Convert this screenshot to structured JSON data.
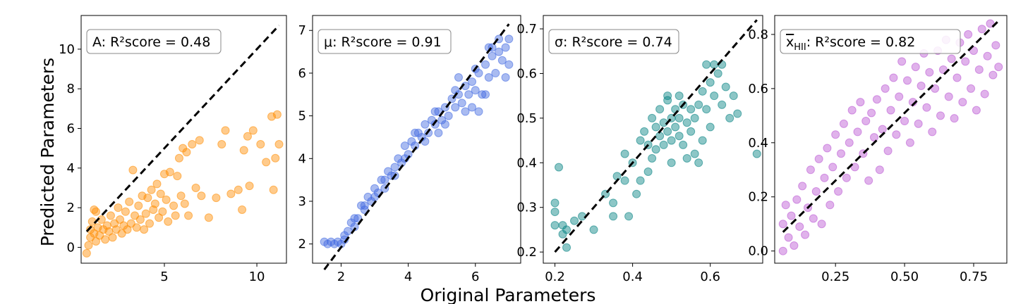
{
  "figure": {
    "xlabel": "Original Parameters",
    "ylabel": "Predicted Parameters"
  },
  "chart_data": [
    {
      "type": "scatter",
      "annotation": "A: R²score = 0.48",
      "color": "#ff8c00",
      "xlim": [
        0.5,
        11.6
      ],
      "ylim": [
        -0.8,
        11.7
      ],
      "xticks": [
        5,
        10
      ],
      "yticks": [
        0,
        2,
        4,
        6,
        8,
        10
      ],
      "identity_line": [
        [
          0.8,
          0.8
        ],
        [
          11.2,
          11.2
        ]
      ],
      "points": [
        [
          0.8,
          -0.3
        ],
        [
          0.9,
          0.1
        ],
        [
          1.0,
          0.5
        ],
        [
          1.0,
          0.9
        ],
        [
          1.1,
          1.3
        ],
        [
          1.2,
          0.7
        ],
        [
          1.3,
          1.8
        ],
        [
          1.3,
          0.3
        ],
        [
          1.4,
          1.0
        ],
        [
          1.5,
          0.6
        ],
        [
          1.6,
          1.4
        ],
        [
          1.7,
          0.9
        ],
        [
          1.8,
          0.4
        ],
        [
          1.9,
          1.1
        ],
        [
          2.0,
          0.8
        ],
        [
          2.1,
          1.6
        ],
        [
          2.2,
          0.5
        ],
        [
          2.3,
          1.2
        ],
        [
          2.4,
          0.9
        ],
        [
          2.5,
          2.0
        ],
        [
          2.6,
          1.4
        ],
        [
          2.7,
          0.7
        ],
        [
          2.8,
          1.1
        ],
        [
          2.9,
          1.8
        ],
        [
          3.0,
          0.9
        ],
        [
          3.1,
          2.3
        ],
        [
          3.2,
          1.2
        ],
        [
          3.3,
          3.9
        ],
        [
          3.4,
          1.6
        ],
        [
          3.5,
          1.0
        ],
        [
          3.6,
          2.1
        ],
        [
          3.7,
          1.4
        ],
        [
          3.8,
          2.6
        ],
        [
          3.9,
          0.9
        ],
        [
          4.0,
          1.7
        ],
        [
          4.1,
          2.5
        ],
        [
          4.2,
          1.2
        ],
        [
          4.3,
          2.9
        ],
        [
          4.4,
          1.9
        ],
        [
          4.5,
          2.2
        ],
        [
          4.6,
          3.2
        ],
        [
          4.7,
          1.5
        ],
        [
          4.8,
          2.7
        ],
        [
          4.9,
          1.8
        ],
        [
          5.0,
          3.7
        ],
        [
          5.1,
          2.4
        ],
        [
          5.2,
          1.3
        ],
        [
          5.3,
          3.8
        ],
        [
          5.5,
          2.1
        ],
        [
          5.6,
          1.6
        ],
        [
          5.7,
          3.6
        ],
        [
          5.8,
          4.5
        ],
        [
          5.9,
          2.6
        ],
        [
          6.0,
          5.0
        ],
        [
          6.1,
          2.2
        ],
        [
          6.2,
          4.8
        ],
        [
          6.3,
          1.6
        ],
        [
          6.5,
          5.2
        ],
        [
          6.7,
          3.0
        ],
        [
          6.9,
          5.4
        ],
        [
          7.0,
          2.6
        ],
        [
          7.4,
          1.5
        ],
        [
          7.8,
          2.5
        ],
        [
          8.1,
          5.2
        ],
        [
          8.3,
          5.9
        ],
        [
          8.6,
          2.7
        ],
        [
          9.0,
          2.9
        ],
        [
          9.2,
          1.9
        ],
        [
          9.3,
          4.9
        ],
        [
          9.5,
          5.6
        ],
        [
          9.6,
          3.1
        ],
        [
          9.8,
          5.9
        ],
        [
          10.2,
          5.2
        ],
        [
          10.5,
          4.3
        ],
        [
          10.8,
          6.6
        ],
        [
          10.9,
          2.9
        ],
        [
          11.0,
          4.5
        ],
        [
          11.1,
          6.7
        ],
        [
          11.2,
          5.2
        ],
        [
          1.2,
          1.9
        ]
      ]
    },
    {
      "type": "scatter",
      "annotation": "μ: R²score = 0.91",
      "color": "#4169e1",
      "xlim": [
        1.15,
        7.35
      ],
      "ylim": [
        1.55,
        7.35
      ],
      "xticks": [
        2,
        4,
        6
      ],
      "yticks": [
        2,
        3,
        4,
        5,
        6,
        7
      ],
      "identity_line": [
        [
          1.5,
          1.4
        ],
        [
          7.0,
          7.15
        ]
      ],
      "points": [
        [
          1.5,
          2.05
        ],
        [
          1.6,
          2.0
        ],
        [
          1.7,
          2.05
        ],
        [
          1.8,
          2.0
        ],
        [
          1.9,
          2.05
        ],
        [
          2.0,
          2.0
        ],
        [
          2.1,
          2.1
        ],
        [
          2.2,
          2.3
        ],
        [
          2.3,
          2.5
        ],
        [
          2.4,
          2.6
        ],
        [
          2.5,
          2.6
        ],
        [
          2.6,
          2.9
        ],
        [
          2.7,
          2.8
        ],
        [
          2.8,
          3.1
        ],
        [
          2.9,
          3.0
        ],
        [
          3.0,
          3.3
        ],
        [
          3.1,
          3.2
        ],
        [
          3.2,
          3.5
        ],
        [
          3.3,
          3.3
        ],
        [
          3.4,
          3.7
        ],
        [
          3.5,
          3.6
        ],
        [
          3.6,
          3.8
        ],
        [
          3.7,
          4.0
        ],
        [
          3.8,
          3.9
        ],
        [
          3.9,
          4.3
        ],
        [
          4.0,
          4.1
        ],
        [
          4.1,
          4.4
        ],
        [
          4.2,
          4.3
        ],
        [
          4.3,
          4.6
        ],
        [
          4.4,
          4.5
        ],
        [
          4.5,
          4.8
        ],
        [
          4.6,
          4.6
        ],
        [
          4.7,
          4.9
        ],
        [
          4.8,
          4.8
        ],
        [
          4.9,
          5.1
        ],
        [
          5.0,
          4.9
        ],
        [
          5.1,
          5.2
        ],
        [
          5.2,
          5.0
        ],
        [
          5.3,
          5.4
        ],
        [
          5.4,
          5.2
        ],
        [
          5.5,
          5.5
        ],
        [
          5.6,
          5.3
        ],
        [
          5.7,
          5.7
        ],
        [
          5.8,
          5.5
        ],
        [
          5.9,
          5.8
        ],
        [
          6.0,
          5.6
        ],
        [
          6.1,
          6.0
        ],
        [
          6.2,
          5.5
        ],
        [
          6.3,
          6.2
        ],
        [
          6.4,
          5.9
        ],
        [
          6.5,
          6.4
        ],
        [
          6.6,
          6.0
        ],
        [
          6.7,
          6.5
        ],
        [
          6.8,
          6.3
        ],
        [
          6.9,
          6.6
        ],
        [
          7.0,
          6.2
        ],
        [
          7.0,
          6.8
        ],
        [
          6.9,
          5.9
        ],
        [
          6.5,
          6.6
        ],
        [
          6.3,
          5.5
        ],
        [
          6.0,
          6.1
        ],
        [
          5.7,
          5.1
        ],
        [
          5.4,
          5.6
        ],
        [
          5.1,
          4.8
        ],
        [
          4.8,
          5.1
        ],
        [
          4.5,
          4.4
        ],
        [
          4.2,
          4.6
        ],
        [
          3.9,
          4.0
        ],
        [
          3.6,
          3.6
        ],
        [
          3.3,
          3.5
        ],
        [
          3.0,
          3.1
        ],
        [
          2.7,
          2.9
        ],
        [
          2.4,
          2.4
        ],
        [
          2.1,
          2.2
        ],
        [
          5.9,
          5.2
        ],
        [
          6.1,
          5.1
        ],
        [
          6.4,
          6.6
        ],
        [
          6.7,
          6.8
        ],
        [
          5.5,
          5.9
        ],
        [
          4.9,
          4.6
        ]
      ]
    },
    {
      "type": "scatter",
      "annotation": "σ: R²score = 0.74",
      "color": "#008080",
      "xlim": [
        0.17,
        0.735
      ],
      "ylim": [
        0.175,
        0.73
      ],
      "xticks": [
        0.2,
        0.4,
        0.6
      ],
      "yticks": [
        0.2,
        0.3,
        0.4,
        0.5,
        0.6,
        0.7
      ],
      "identity_line": [
        [
          0.2,
          0.2
        ],
        [
          0.72,
          0.72
        ]
      ],
      "points": [
        [
          0.2,
          0.31
        ],
        [
          0.2,
          0.29
        ],
        [
          0.2,
          0.26
        ],
        [
          0.21,
          0.39
        ],
        [
          0.22,
          0.26
        ],
        [
          0.22,
          0.24
        ],
        [
          0.23,
          0.21
        ],
        [
          0.23,
          0.25
        ],
        [
          0.25,
          0.27
        ],
        [
          0.27,
          0.28
        ],
        [
          0.3,
          0.25
        ],
        [
          0.33,
          0.33
        ],
        [
          0.35,
          0.28
        ],
        [
          0.35,
          0.31
        ],
        [
          0.36,
          0.37
        ],
        [
          0.38,
          0.36
        ],
        [
          0.38,
          0.42
        ],
        [
          0.39,
          0.28
        ],
        [
          0.4,
          0.4
        ],
        [
          0.42,
          0.45
        ],
        [
          0.42,
          0.36
        ],
        [
          0.43,
          0.47
        ],
        [
          0.44,
          0.44
        ],
        [
          0.45,
          0.5
        ],
        [
          0.45,
          0.41
        ],
        [
          0.46,
          0.48
        ],
        [
          0.47,
          0.46
        ],
        [
          0.47,
          0.52
        ],
        [
          0.48,
          0.44
        ],
        [
          0.48,
          0.49
        ],
        [
          0.49,
          0.47
        ],
        [
          0.49,
          0.55
        ],
        [
          0.5,
          0.5
        ],
        [
          0.5,
          0.45
        ],
        [
          0.51,
          0.48
        ],
        [
          0.51,
          0.52
        ],
        [
          0.52,
          0.46
        ],
        [
          0.52,
          0.5
        ],
        [
          0.53,
          0.53
        ],
        [
          0.53,
          0.44
        ],
        [
          0.54,
          0.49
        ],
        [
          0.55,
          0.52
        ],
        [
          0.55,
          0.47
        ],
        [
          0.56,
          0.42
        ],
        [
          0.56,
          0.5
        ],
        [
          0.57,
          0.53
        ],
        [
          0.58,
          0.45
        ],
        [
          0.58,
          0.56
        ],
        [
          0.59,
          0.52
        ],
        [
          0.6,
          0.58
        ],
        [
          0.6,
          0.48
        ],
        [
          0.61,
          0.62
        ],
        [
          0.61,
          0.55
        ],
        [
          0.62,
          0.6
        ],
        [
          0.63,
          0.53
        ],
        [
          0.63,
          0.62
        ],
        [
          0.64,
          0.57
        ],
        [
          0.65,
          0.5
        ],
        [
          0.66,
          0.55
        ],
        [
          0.67,
          0.51
        ],
        [
          0.72,
          0.42
        ],
        [
          0.57,
          0.4
        ],
        [
          0.54,
          0.41
        ],
        [
          0.5,
          0.4
        ],
        [
          0.46,
          0.43
        ],
        [
          0.44,
          0.38
        ],
        [
          0.41,
          0.33
        ],
        [
          0.52,
          0.55
        ],
        [
          0.49,
          0.54
        ],
        [
          0.59,
          0.62
        ]
      ]
    },
    {
      "type": "scatter",
      "annotation": "x̄_HII: R²score = 0.82",
      "annotation_prefix": "x",
      "annotation_subscript": "HII",
      "annotation_suffix": ": R²score = 0.82",
      "color": "#ba55d3",
      "xlim": [
        0.03,
        0.87
      ],
      "ylim": [
        -0.045,
        0.87
      ],
      "xticks": [
        0.25,
        0.5,
        0.75
      ],
      "yticks": [
        0.0,
        0.2,
        0.4,
        0.6,
        0.8
      ],
      "identity_line": [
        [
          0.06,
          0.07
        ],
        [
          0.84,
          0.85
        ]
      ],
      "points": [
        [
          0.06,
          0.0
        ],
        [
          0.06,
          0.1
        ],
        [
          0.07,
          0.17
        ],
        [
          0.08,
          0.05
        ],
        [
          0.09,
          0.13
        ],
        [
          0.1,
          0.02
        ],
        [
          0.11,
          0.19
        ],
        [
          0.12,
          0.09
        ],
        [
          0.13,
          0.24
        ],
        [
          0.14,
          0.06
        ],
        [
          0.15,
          0.16
        ],
        [
          0.16,
          0.3
        ],
        [
          0.17,
          0.12
        ],
        [
          0.18,
          0.22
        ],
        [
          0.19,
          0.34
        ],
        [
          0.2,
          0.1
        ],
        [
          0.21,
          0.27
        ],
        [
          0.22,
          0.38
        ],
        [
          0.23,
          0.17
        ],
        [
          0.24,
          0.31
        ],
        [
          0.25,
          0.43
        ],
        [
          0.26,
          0.22
        ],
        [
          0.27,
          0.36
        ],
        [
          0.28,
          0.47
        ],
        [
          0.29,
          0.27
        ],
        [
          0.3,
          0.4
        ],
        [
          0.31,
          0.52
        ],
        [
          0.32,
          0.31
        ],
        [
          0.33,
          0.44
        ],
        [
          0.34,
          0.55
        ],
        [
          0.35,
          0.36
        ],
        [
          0.36,
          0.48
        ],
        [
          0.37,
          0.26
        ],
        [
          0.38,
          0.51
        ],
        [
          0.39,
          0.42
        ],
        [
          0.4,
          0.56
        ],
        [
          0.41,
          0.3
        ],
        [
          0.42,
          0.45
        ],
        [
          0.43,
          0.6
        ],
        [
          0.44,
          0.37
        ],
        [
          0.45,
          0.52
        ],
        [
          0.46,
          0.64
        ],
        [
          0.47,
          0.43
        ],
        [
          0.48,
          0.57
        ],
        [
          0.49,
          0.7
        ],
        [
          0.5,
          0.48
        ],
        [
          0.51,
          0.63
        ],
        [
          0.52,
          0.4
        ],
        [
          0.53,
          0.55
        ],
        [
          0.54,
          0.68
        ],
        [
          0.55,
          0.47
        ],
        [
          0.56,
          0.61
        ],
        [
          0.57,
          0.73
        ],
        [
          0.58,
          0.53
        ],
        [
          0.59,
          0.66
        ],
        [
          0.6,
          0.44
        ],
        [
          0.61,
          0.6
        ],
        [
          0.62,
          0.74
        ],
        [
          0.63,
          0.5
        ],
        [
          0.64,
          0.67
        ],
        [
          0.65,
          0.78
        ],
        [
          0.66,
          0.57
        ],
        [
          0.67,
          0.71
        ],
        [
          0.68,
          0.49
        ],
        [
          0.69,
          0.64
        ],
        [
          0.7,
          0.77
        ],
        [
          0.71,
          0.55
        ],
        [
          0.72,
          0.7
        ],
        [
          0.73,
          0.8
        ],
        [
          0.74,
          0.6
        ],
        [
          0.75,
          0.74
        ],
        [
          0.76,
          0.52
        ],
        [
          0.77,
          0.67
        ],
        [
          0.78,
          0.82
        ],
        [
          0.79,
          0.58
        ],
        [
          0.8,
          0.72
        ],
        [
          0.81,
          0.84
        ],
        [
          0.82,
          0.65
        ],
        [
          0.83,
          0.76
        ],
        [
          0.84,
          0.68
        ]
      ]
    }
  ]
}
